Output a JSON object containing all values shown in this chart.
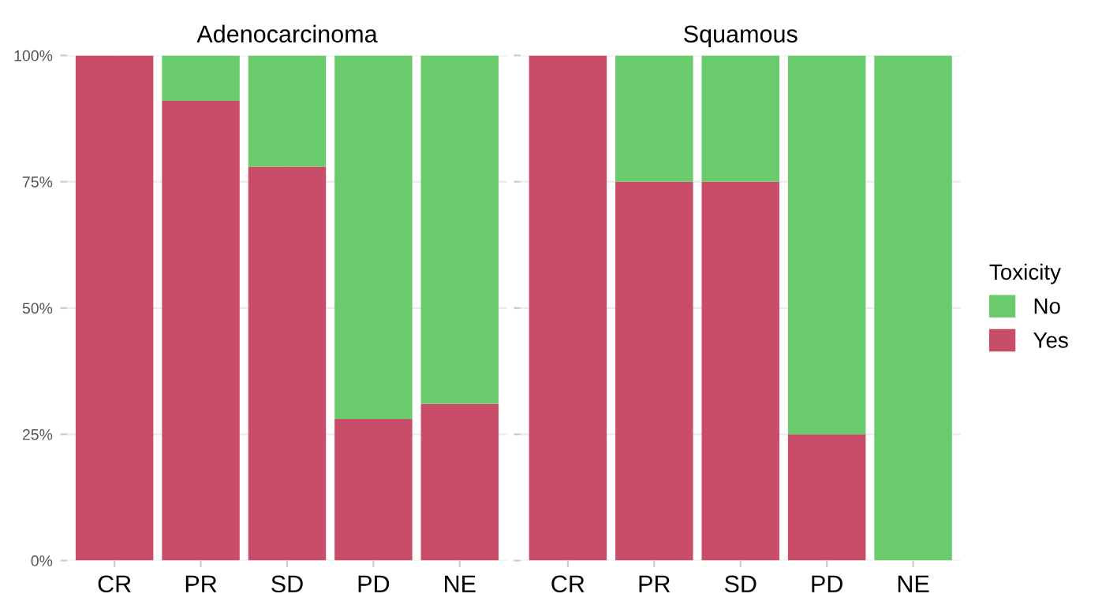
{
  "chart_data": [
    {
      "type": "bar",
      "title": "Adenocarcinoma",
      "stacked": true,
      "categories": [
        "CR",
        "PR",
        "SD",
        "PD",
        "NE"
      ],
      "series": [
        {
          "color": "#c94d68",
          "values": [
            100,
            91,
            78,
            28,
            31
          ]
        },
        {
          "color": "#6acb6c",
          "values": [
            0,
            9,
            22,
            72,
            69
          ]
        }
      ],
      "ylim": [
        0,
        100
      ],
      "yticks": [
        {
          "value": 0,
          "label": "0%"
        },
        {
          "value": 25,
          "label": "25%"
        },
        {
          "value": 50,
          "label": "50%"
        },
        {
          "value": 75,
          "label": "75%"
        },
        {
          "value": 100,
          "label": "100%"
        }
      ],
      "grid": true,
      "legend": false
    },
    {
      "type": "bar",
      "title": "Squamous",
      "stacked": true,
      "categories": [
        "CR",
        "PR",
        "SD",
        "PD",
        "NE"
      ],
      "series": [
        {
          "name": "Yes",
          "color": "#c94d68",
          "values": [
            100,
            75,
            75,
            25,
            0
          ]
        },
        {
          "name": "No",
          "color": "#6acb6c",
          "values": [
            0,
            25,
            25,
            75,
            100
          ]
        }
      ],
      "ylim": [
        0,
        100
      ],
      "yticks": [
        {
          "value": 0,
          "label": null
        },
        {
          "value": 25,
          "label": null
        },
        {
          "value": 50,
          "label": null
        },
        {
          "value": 75,
          "label": null
        },
        {
          "value": 100,
          "label": null
        }
      ],
      "grid": true,
      "legend": "right",
      "legend_title": "Toxicity",
      "tick_labels": "x"
    }
  ]
}
